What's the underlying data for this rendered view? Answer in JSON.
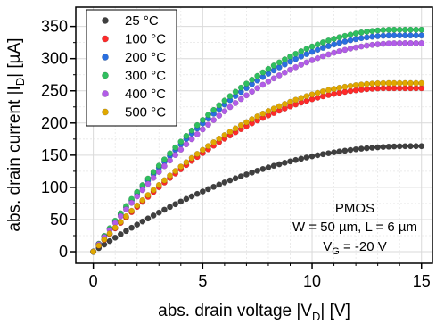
{
  "chart_data": {
    "type": "scatter",
    "xlabel_main": "abs. drain voltage |V",
    "xlabel_sub": "D",
    "xlabel_tail": "| [V]",
    "ylabel_main": "abs. drain current |I",
    "ylabel_sub": "D",
    "ylabel_tail": "| [µA]",
    "xlim": [
      -0.8,
      15.5
    ],
    "ylim": [
      -18,
      380
    ],
    "xticks": [
      0,
      5,
      10,
      15
    ],
    "yticks": [
      0,
      50,
      100,
      150,
      200,
      250,
      300,
      350
    ],
    "legend_position": "top-left",
    "annotation": {
      "line1": "PMOS",
      "line2": "W = 50 µm, L = 6 µm",
      "line3_main": "V",
      "line3_sub": "G",
      "line3_tail": " = -20 V"
    },
    "series": [
      {
        "name": "25 °C",
        "color": "#3f3f3f",
        "vdsat": 14.5,
        "idsat": 164
      },
      {
        "name": "100 °C",
        "color": "#ff2a2a",
        "vdsat": 13.5,
        "idsat": 254
      },
      {
        "name": "200 °C",
        "color": "#2a6fe0",
        "vdsat": 13.8,
        "idsat": 336
      },
      {
        "name": "300 °C",
        "color": "#2fbf5f",
        "vdsat": 13.8,
        "idsat": 345
      },
      {
        "name": "400 °C",
        "color": "#b25ce8",
        "vdsat": 14.0,
        "idsat": 324
      },
      {
        "name": "500 °C",
        "color": "#e0a800",
        "vdsat": 13.5,
        "idsat": 262
      }
    ]
  }
}
